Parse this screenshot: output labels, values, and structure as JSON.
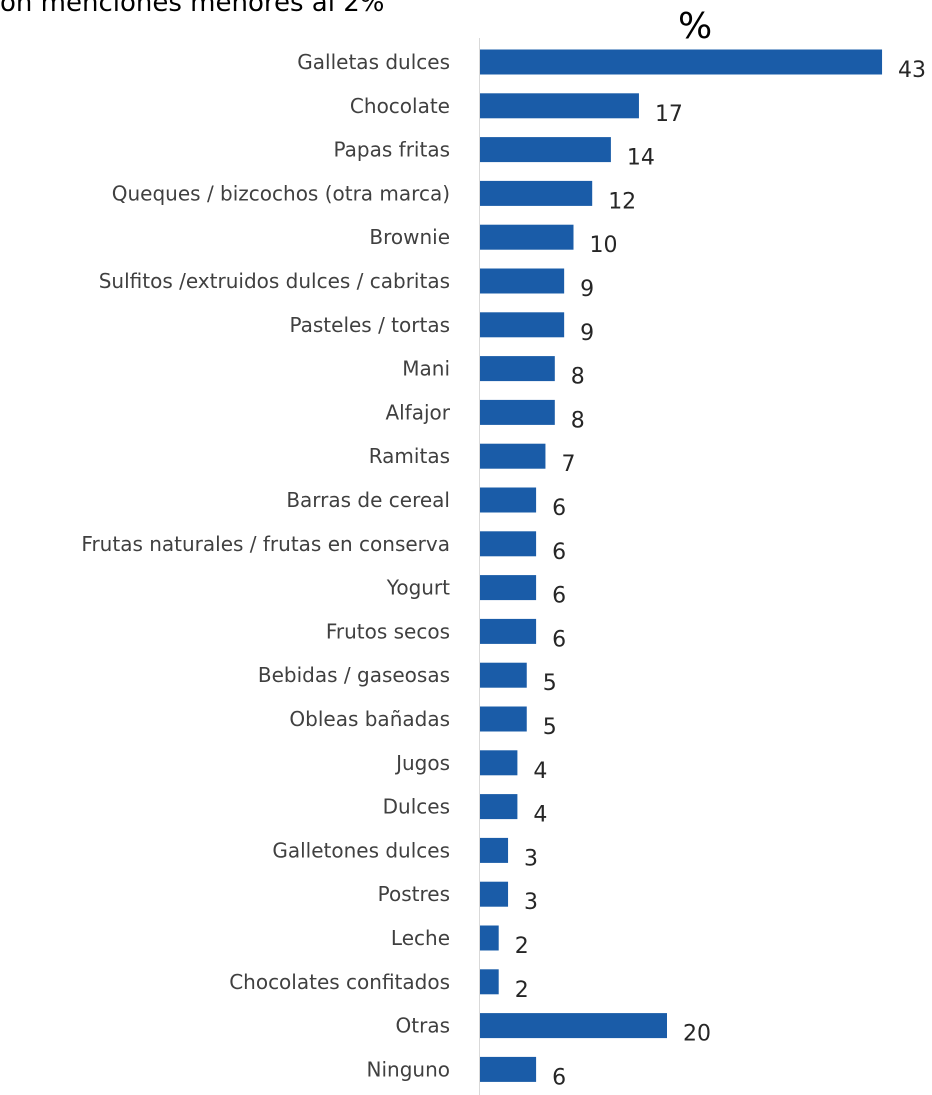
{
  "page": {
    "title_partial": "on menciones menores al 2%",
    "unit": "%"
  },
  "colors": {
    "bar": "#1a5ca8",
    "axis": "#d9d9d9",
    "label": "#404040",
    "value": "#262626"
  },
  "chart_data": {
    "type": "bar",
    "orientation": "horizontal",
    "categories": [
      "Galletas dulces",
      "Chocolate",
      "Papas fritas",
      "Queques / bizcochos (otra marca)",
      "Brownie",
      "Sulfitos /extruidos dulces / cabritas",
      "Pasteles / tortas",
      "Mani",
      "Alfajor",
      "Ramitas",
      "Barras de cereal",
      "Frutas naturales / frutas en conserva",
      "Yogurt",
      "Frutos secos",
      "Bebidas / gaseosas",
      "Obleas bañadas",
      "Jugos",
      "Dulces",
      "Galletones dulces",
      "Postres",
      "Leche",
      "Chocolates confitados",
      "Otras",
      "Ninguno"
    ],
    "values": [
      43,
      17,
      14,
      12,
      10,
      9,
      9,
      8,
      8,
      7,
      6,
      6,
      6,
      6,
      5,
      5,
      4,
      4,
      3,
      3,
      2,
      2,
      20,
      6
    ],
    "data_labels": [
      "43",
      "17",
      "14",
      "12",
      "10",
      "9",
      "9",
      "8",
      "8",
      "7",
      "6",
      "6",
      "6",
      "6",
      "5",
      "5",
      "4",
      "4",
      "3",
      "3",
      "2",
      "2",
      "20",
      "6"
    ],
    "unit": "%",
    "grid": false,
    "legend": "none"
  }
}
